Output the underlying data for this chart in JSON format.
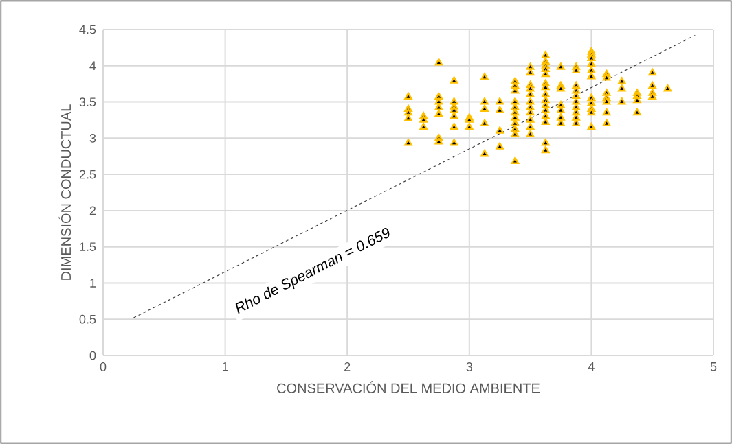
{
  "chart_data": {
    "type": "scatter",
    "xlabel": "CONSERVACIÓN DEL MEDIO AMBIENTE",
    "ylabel": "DIMENSIÓN CONDUCTUAL",
    "xlim": [
      0,
      5
    ],
    "ylim": [
      0,
      4.5
    ],
    "xticks": [
      0,
      1,
      2,
      3,
      4,
      5
    ],
    "yticks": [
      0,
      0.5,
      1,
      1.5,
      2,
      2.5,
      3,
      3.5,
      4,
      4.5
    ],
    "grid": true,
    "marker": "triangle",
    "annotations": [
      "Rho de Spearman = 0.659"
    ],
    "series": [
      {
        "color": "#ffc000",
        "x": [
          2.5,
          2.5,
          2.5,
          2.5,
          2.5,
          2.625,
          2.625,
          2.625,
          2.75,
          2.75,
          2.75,
          2.75,
          2.75,
          2.75,
          2.75,
          2.875,
          2.875,
          2.875,
          2.875,
          2.875,
          2.875,
          2.875,
          3,
          3,
          3,
          3.125,
          3.125,
          3.125,
          3.125,
          3.125,
          3.25,
          3.25,
          3.25,
          3.25,
          3.375,
          3.375,
          3.375,
          3.375,
          3.375,
          3.375,
          3.375,
          3.375,
          3.375,
          3.375,
          3.375,
          3.5,
          3.5,
          3.5,
          3.5,
          3.5,
          3.5,
          3.5,
          3.5,
          3.5,
          3.5,
          3.5,
          3.625,
          3.625,
          3.625,
          3.625,
          3.625,
          3.625,
          3.625,
          3.625,
          3.625,
          3.625,
          3.625,
          3.625,
          3.625,
          3.625,
          3.625,
          3.75,
          3.75,
          3.75,
          3.75,
          3.75,
          3.75,
          3.75,
          3.875,
          3.875,
          3.875,
          3.875,
          3.875,
          3.875,
          3.875,
          3.875,
          3.875,
          3.875,
          4,
          4,
          4,
          4,
          4,
          4,
          4,
          4,
          4,
          4,
          4,
          4.125,
          4.125,
          4.125,
          4.125,
          4.125,
          4.125,
          4.125,
          4.25,
          4.25,
          4.25,
          4.375,
          4.375,
          4.375,
          4.375,
          4.5,
          4.5,
          4.5,
          4.5,
          4.625
        ],
        "values": [
          3.57,
          3.4,
          3.35,
          3.27,
          2.93,
          3.3,
          3.25,
          3.15,
          4.04,
          3.57,
          3.5,
          3.42,
          3.33,
          3.0,
          2.95,
          3.79,
          3.5,
          3.43,
          3.38,
          3.3,
          3.15,
          2.93,
          3.28,
          3.25,
          3.15,
          3.84,
          3.5,
          3.4,
          3.2,
          2.78,
          3.5,
          3.38,
          3.1,
          2.88,
          3.78,
          3.72,
          3.65,
          3.5,
          3.42,
          3.35,
          3.28,
          3.2,
          3.12,
          3.05,
          2.68,
          3.98,
          3.9,
          3.73,
          3.68,
          3.6,
          3.5,
          3.42,
          3.35,
          3.25,
          3.15,
          3.05,
          4.14,
          4.05,
          4.0,
          3.95,
          3.88,
          3.75,
          3.7,
          3.6,
          3.52,
          3.45,
          3.38,
          3.3,
          3.22,
          2.93,
          2.83,
          3.98,
          3.72,
          3.68,
          3.45,
          3.38,
          3.28,
          3.2,
          3.98,
          3.93,
          3.72,
          3.65,
          3.58,
          3.5,
          3.42,
          3.35,
          3.28,
          3.2,
          4.19,
          4.15,
          4.1,
          4.02,
          3.93,
          3.85,
          3.55,
          3.48,
          3.4,
          3.35,
          3.15,
          3.88,
          3.83,
          3.62,
          3.55,
          3.5,
          3.35,
          3.2,
          3.78,
          3.68,
          3.5,
          3.62,
          3.58,
          3.52,
          3.35,
          3.9,
          3.72,
          3.62,
          3.57,
          3.68
        ]
      },
      {
        "type": "line",
        "color": "#404040",
        "line_style": "dashed",
        "marker": "none",
        "x": [
          0.25,
          4.85
        ],
        "values": [
          0.52,
          4.42
        ]
      }
    ]
  }
}
